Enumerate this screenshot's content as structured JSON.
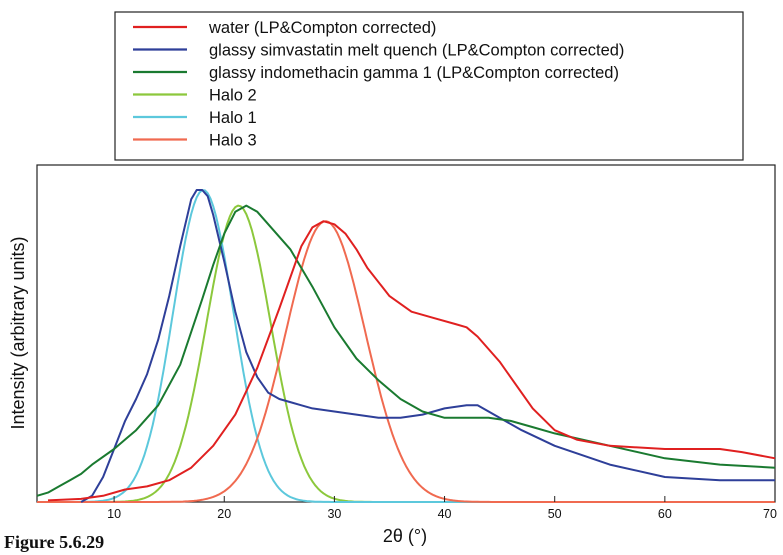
{
  "chart_data": {
    "type": "line",
    "title": "",
    "xlabel": "2θ (°)",
    "ylabel": "Intensity (arbitrary units)",
    "xlim": [
      3,
      70
    ],
    "ylim": [
      0,
      1.08
    ],
    "xticks": [
      10,
      20,
      30,
      40,
      50,
      60,
      70
    ],
    "grid": false,
    "legend_position": "top",
    "series": [
      {
        "name": "water (LP&Compton corrected)",
        "color": "#e02020",
        "x": [
          4,
          7,
          9,
          11,
          13,
          15,
          17,
          19,
          21,
          23,
          25,
          27,
          28,
          29,
          30,
          31,
          32,
          33,
          35,
          37,
          39,
          41,
          42,
          43,
          44,
          45,
          46,
          48,
          50,
          52,
          55,
          60,
          62,
          65,
          67,
          70
        ],
        "y": [
          0.005,
          0.01,
          0.02,
          0.04,
          0.05,
          0.07,
          0.11,
          0.18,
          0.28,
          0.43,
          0.62,
          0.82,
          0.88,
          0.9,
          0.89,
          0.86,
          0.81,
          0.75,
          0.66,
          0.61,
          0.59,
          0.57,
          0.56,
          0.53,
          0.49,
          0.45,
          0.4,
          0.3,
          0.23,
          0.2,
          0.18,
          0.17,
          0.17,
          0.17,
          0.16,
          0.14
        ]
      },
      {
        "name": "glassy simvastatin melt quench (LP&Compton corrected)",
        "color": "#2e3f99",
        "x": [
          7,
          8,
          9,
          10,
          11,
          12,
          13,
          14,
          15,
          16,
          17,
          17.5,
          18,
          18.5,
          19,
          20,
          21,
          22,
          23,
          24,
          25,
          26,
          27,
          28,
          30,
          32,
          34,
          36,
          38,
          40,
          42,
          43,
          45,
          47,
          50,
          55,
          60,
          65,
          70
        ],
        "y": [
          0,
          0.02,
          0.08,
          0.17,
          0.26,
          0.33,
          0.41,
          0.52,
          0.66,
          0.82,
          0.97,
          1.0,
          1.0,
          0.98,
          0.92,
          0.77,
          0.61,
          0.48,
          0.4,
          0.35,
          0.33,
          0.32,
          0.31,
          0.3,
          0.29,
          0.28,
          0.27,
          0.27,
          0.28,
          0.3,
          0.31,
          0.31,
          0.27,
          0.23,
          0.18,
          0.12,
          0.08,
          0.07,
          0.07
        ]
      },
      {
        "name": "glassy indomethacin gamma 1 (LP&Compton corrected)",
        "color": "#1a7a30",
        "x": [
          3,
          4,
          5,
          6,
          7,
          8,
          10,
          12,
          14,
          16,
          18,
          19,
          20,
          21,
          22,
          23,
          24,
          26,
          28,
          30,
          32,
          34,
          36,
          38,
          40,
          42,
          44,
          46,
          48,
          50,
          55,
          60,
          65,
          70
        ],
        "y": [
          0.02,
          0.03,
          0.05,
          0.07,
          0.09,
          0.12,
          0.17,
          0.23,
          0.31,
          0.44,
          0.65,
          0.76,
          0.86,
          0.93,
          0.95,
          0.93,
          0.89,
          0.81,
          0.69,
          0.56,
          0.46,
          0.39,
          0.33,
          0.29,
          0.27,
          0.27,
          0.27,
          0.26,
          0.24,
          0.22,
          0.18,
          0.14,
          0.12,
          0.11
        ]
      },
      {
        "name": "Halo 2",
        "color": "#8cc83c",
        "type": "gaussian",
        "center": 21.3,
        "sigma": 2.9,
        "amplitude": 0.95
      },
      {
        "name": "Halo 1",
        "color": "#5cc8dc",
        "type": "gaussian",
        "center": 18.1,
        "sigma": 2.75,
        "amplitude": 1.0
      },
      {
        "name": "Halo 3",
        "color": "#f06a50",
        "type": "gaussian",
        "center": 29.2,
        "sigma": 3.6,
        "amplitude": 0.9
      }
    ]
  },
  "caption": "Figure 5.6.29"
}
